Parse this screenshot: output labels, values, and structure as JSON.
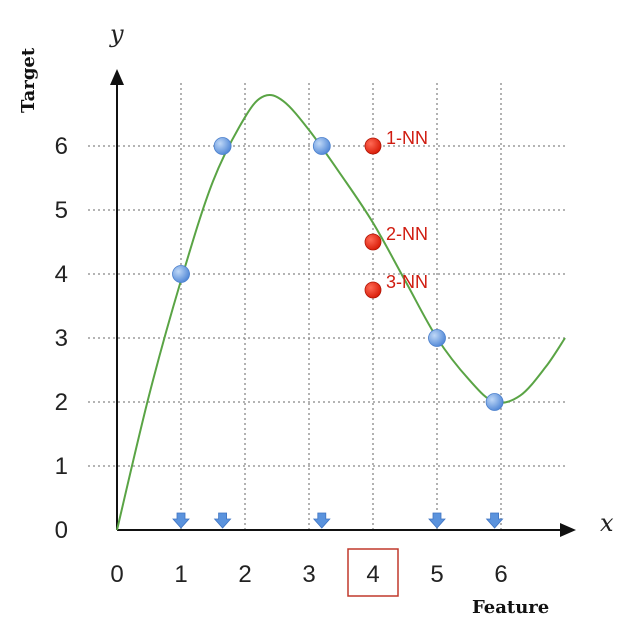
{
  "chart_data": {
    "type": "scatter",
    "xlabel": "Feature",
    "ylabel": "Target",
    "x_axis_letter": "x",
    "y_axis_letter": "y",
    "xlim": [
      0,
      7
    ],
    "ylim": [
      0,
      7
    ],
    "x_ticks": [
      "0",
      "1",
      "2",
      "3",
      "4",
      "5",
      "6"
    ],
    "y_ticks": [
      "0",
      "1",
      "2",
      "3",
      "4",
      "5",
      "6"
    ],
    "grid": true,
    "highlighted_x_tick": "4",
    "curve": {
      "x": [
        0,
        0.5,
        1,
        1.5,
        2,
        2.3,
        2.6,
        3,
        3.5,
        4,
        4.5,
        5,
        5.5,
        5.9,
        6.3,
        6.7,
        7
      ],
      "y": [
        0,
        2.1,
        3.9,
        5.45,
        6.45,
        6.78,
        6.7,
        6.25,
        5.55,
        4.8,
        3.9,
        3.0,
        2.35,
        2.0,
        2.1,
        2.55,
        3.0
      ]
    },
    "training_points": {
      "x": [
        1,
        1.65,
        3.2,
        5,
        5.9
      ],
      "y": [
        4,
        6,
        6,
        3,
        2
      ]
    },
    "feature_markers_x": [
      1,
      1.65,
      3.2,
      5,
      5.9
    ],
    "neighbors": [
      {
        "label": "1-NN",
        "x": 4,
        "y": 6
      },
      {
        "label": "2-NN",
        "x": 4,
        "y": 4.5
      },
      {
        "label": "3-NN",
        "x": 4,
        "y": 3.75
      }
    ],
    "colors": {
      "curve": "#5aa445",
      "training_point": "#5b93dd",
      "neighbor_point": "#e8210d",
      "neighbor_label": "#d01c10",
      "highlight_box": "#c0392b",
      "grid": "#888888"
    }
  }
}
